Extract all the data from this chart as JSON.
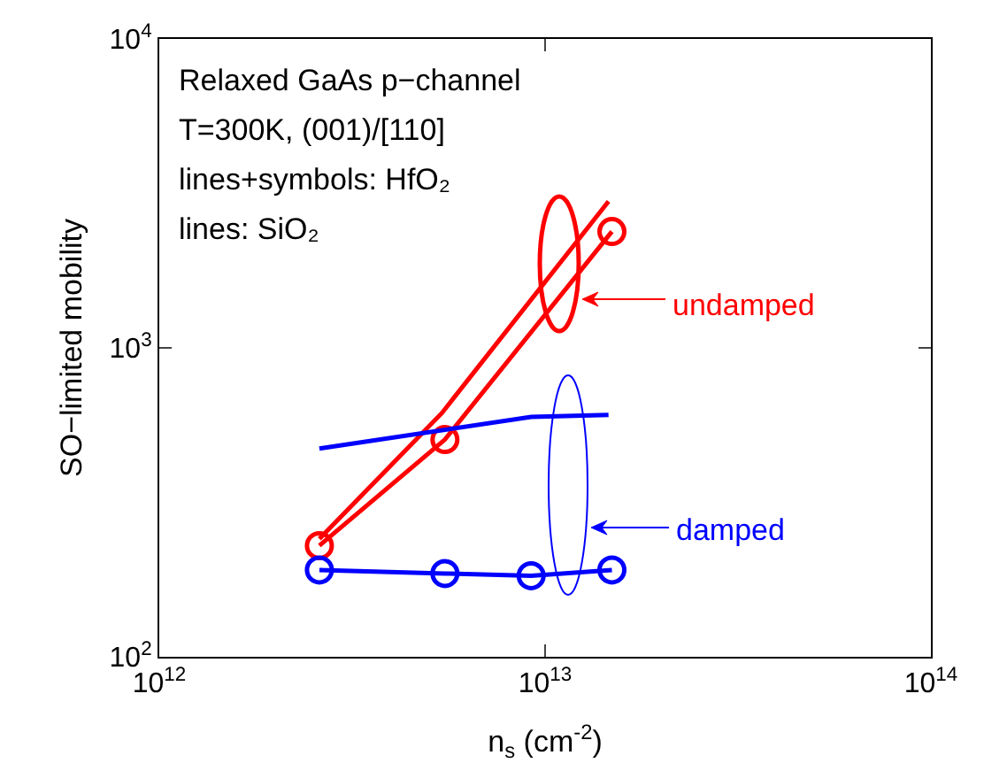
{
  "chart_data": {
    "type": "line",
    "xlabel": "n$_{s}$ (cm$^{-2}$)",
    "ylabel": "SO−limited mobility",
    "log": "xy",
    "xlim": [
      1000000000000.0,
      100000000000000.0
    ],
    "xticks": [
      {
        "value": 1000000000000.0,
        "label": "10$^{12}$"
      },
      {
        "value": 10000000000000.0,
        "label": "10$^{13}$"
      },
      {
        "value": 100000000000000.0,
        "label": "10$^{14}$"
      }
    ],
    "ylim": [
      100,
      10000
    ],
    "yticks": [
      {
        "value": 100,
        "label": "10$^{2}$"
      },
      {
        "value": 1000,
        "label": "10$^{3}$"
      },
      {
        "value": 10000,
        "label": "10$^{4}$"
      }
    ],
    "grid": false,
    "line_style": "solid",
    "series": [
      {
        "color": "#ff0000",
        "marker": "circle",
        "x": [
          2600000000000.0,
          5500000000000.0,
          14900000000000.0
        ],
        "values": [
          229,
          505,
          2380
        ]
      },
      {
        "color": "#ff0000",
        "marker": "none",
        "x": [
          2600000000000.0,
          5400000000000.0,
          14600000000000.0
        ],
        "values": [
          241,
          615,
          2980
        ]
      },
      {
        "color": "#0000ff",
        "marker": "circle",
        "x": [
          2600000000000.0,
          5500000000000.0,
          9200000000000.0,
          14900000000000.0
        ],
        "values": [
          191,
          186,
          183,
          191
        ]
      },
      {
        "color": "#0000ff",
        "marker": "none",
        "x": [
          2600000000000.0,
          9200000000000.0,
          14600000000000.0
        ],
        "values": [
          472,
          598,
          607
        ]
      }
    ],
    "annotations": [
      "Relaxed GaAs p−channel",
      "T=300K, (001)/[110]",
      "lines+symbols: HfO₂",
      "lines: SiO₂",
      "undamped",
      "damped"
    ]
  }
}
